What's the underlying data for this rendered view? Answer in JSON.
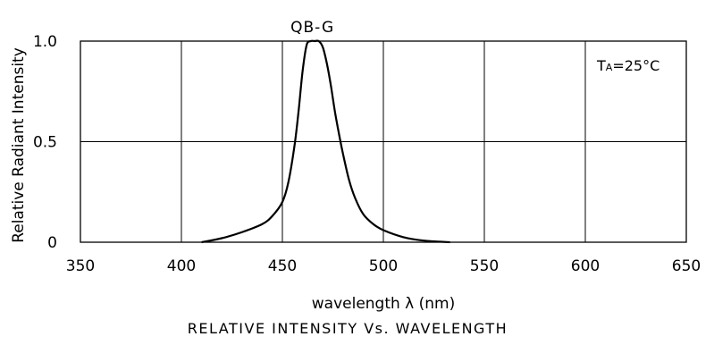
{
  "chart_data": {
    "type": "line",
    "title": "RELATIVE INTENSITY Vs. WAVELENGTH",
    "xlabel": "wavelength λ (nm)",
    "ylabel": "Relative Radiant Intensity",
    "xlim": [
      350,
      650
    ],
    "ylim": [
      0,
      1.0
    ],
    "x_ticks": [
      350,
      400,
      450,
      500,
      550,
      600,
      650
    ],
    "y_ticks": [
      0,
      0.5,
      1.0
    ],
    "x_tick_labels": [
      "350",
      "400",
      "450",
      "500",
      "550",
      "600",
      "650"
    ],
    "y_tick_labels": [
      "0",
      "0.5",
      "1.0"
    ],
    "grid": true,
    "legend": "none",
    "annotation": {
      "main": "T",
      "subscript": "A",
      "rest": "=25°C"
    },
    "series": [
      {
        "name": "QB-G",
        "color": "#000000",
        "x": [
          410,
          420,
          430,
          440,
          445,
          450,
          453,
          456,
          458,
          460,
          462,
          464,
          466,
          468,
          470,
          472,
          474,
          476,
          478,
          480,
          483,
          486,
          490,
          495,
          500,
          510,
          520,
          533
        ],
        "y": [
          0.0,
          0.02,
          0.05,
          0.09,
          0.13,
          0.2,
          0.3,
          0.48,
          0.65,
          0.85,
          0.98,
          1.0,
          1.0,
          1.0,
          0.97,
          0.89,
          0.78,
          0.65,
          0.54,
          0.44,
          0.31,
          0.22,
          0.14,
          0.09,
          0.06,
          0.025,
          0.008,
          0.0
        ]
      }
    ]
  }
}
